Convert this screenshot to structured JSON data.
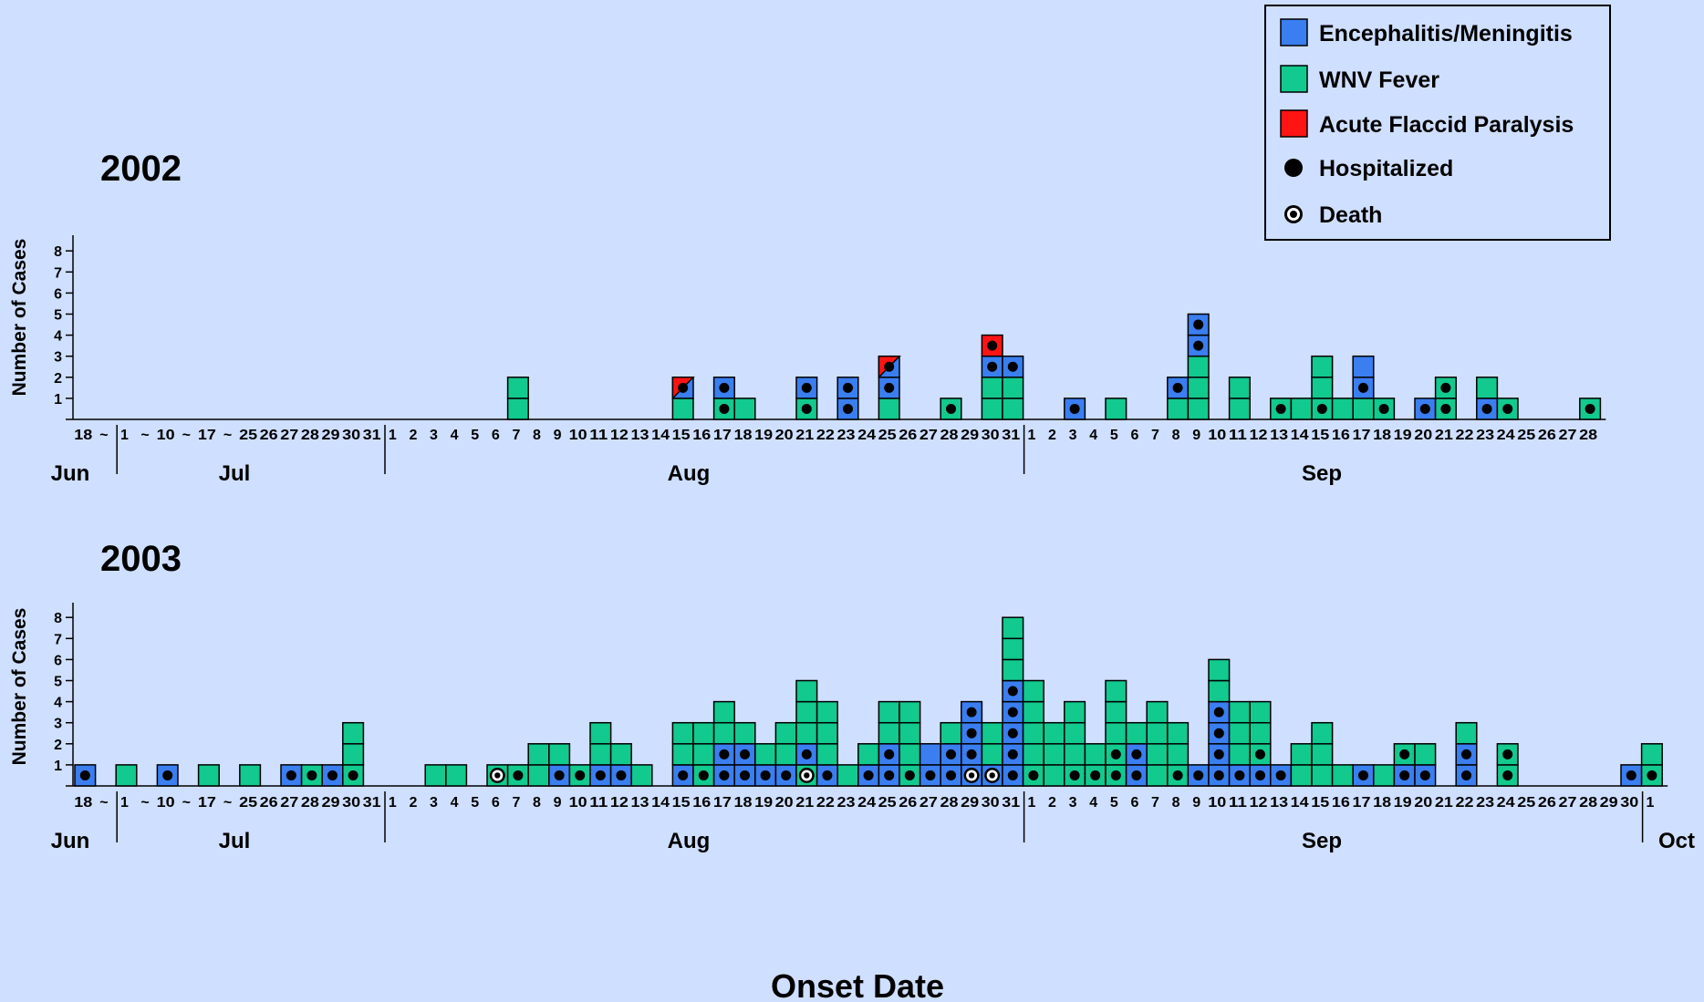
{
  "colors": {
    "background": "#cfdfff",
    "enceph": "#3a7ef0",
    "fever": "#12c98e",
    "afp": "#ff1414",
    "outline": "#000000"
  },
  "legend": {
    "items": [
      {
        "key": "enceph",
        "label": "Encephalitis/Meningitis",
        "symbol": "square"
      },
      {
        "key": "fever",
        "label": "WNV Fever",
        "symbol": "square"
      },
      {
        "key": "afp",
        "label": "Acute Flaccid Paralysis",
        "symbol": "square"
      },
      {
        "key": "hosp",
        "label": "Hospitalized",
        "symbol": "dot"
      },
      {
        "key": "death",
        "label": "Death",
        "symbol": "ring"
      }
    ]
  },
  "chart_data": [
    {
      "type": "bar",
      "title": "2002",
      "xlabel": "Onset Date",
      "ylabel": "Number of Cases",
      "y_ticks": [
        "1",
        "2",
        "3",
        "4",
        "5",
        "6",
        "7",
        "8"
      ],
      "ylim": [
        0,
        8
      ],
      "x_tick_labels": [
        "18",
        "~",
        "1",
        "~",
        "10",
        "~",
        "17",
        "~",
        "25",
        "26",
        "27",
        "28",
        "29",
        "30",
        "31",
        "1",
        "2",
        "3",
        "4",
        "5",
        "6",
        "7",
        "8",
        "9",
        "10",
        "11",
        "12",
        "13",
        "14",
        "15",
        "16",
        "17",
        "18",
        "19",
        "20",
        "21",
        "22",
        "23",
        "24",
        "25",
        "26",
        "27",
        "28",
        "29",
        "30",
        "31",
        "1",
        "2",
        "3",
        "4",
        "5",
        "6",
        "7",
        "8",
        "9",
        "10",
        "11",
        "12",
        "13",
        "14",
        "15",
        "16",
        "17",
        "18",
        "19",
        "20",
        "21",
        "22",
        "23",
        "24",
        "25",
        "26",
        "27",
        "28"
      ],
      "month_labels": [
        {
          "label": "Jun",
          "start_index": 0
        },
        {
          "label": "Jul",
          "start_index": 2
        },
        {
          "label": "Aug",
          "start_index": 15
        },
        {
          "label": "Sep",
          "start_index": 46
        }
      ],
      "bars": [
        {
          "date": "Aug 7",
          "cases": [
            "fever",
            "fever"
          ]
        },
        {
          "date": "Aug 15",
          "cases": [
            "fever",
            "enceph/afp:H"
          ]
        },
        {
          "date": "Aug 17",
          "cases": [
            "fever:H",
            "enceph:H"
          ]
        },
        {
          "date": "Aug 18",
          "cases": [
            "fever"
          ]
        },
        {
          "date": "Aug 21",
          "cases": [
            "fever:H",
            "enceph:H"
          ]
        },
        {
          "date": "Aug 23",
          "cases": [
            "enceph:H",
            "enceph:H"
          ]
        },
        {
          "date": "Aug 25",
          "cases": [
            "fever",
            "enceph:H",
            "enceph/afp:H"
          ]
        },
        {
          "date": "Aug 28",
          "cases": [
            "fever:H"
          ]
        },
        {
          "date": "Aug 30",
          "cases": [
            "fever",
            "fever",
            "enceph:H",
            "afp:H"
          ]
        },
        {
          "date": "Aug 31",
          "cases": [
            "fever",
            "fever",
            "enceph:H"
          ]
        },
        {
          "date": "Sep 3",
          "cases": [
            "enceph:H"
          ]
        },
        {
          "date": "Sep 5",
          "cases": [
            "fever"
          ]
        },
        {
          "date": "Sep 8",
          "cases": [
            "fever",
            "enceph:H"
          ]
        },
        {
          "date": "Sep 9",
          "cases": [
            "fever",
            "fever",
            "fever",
            "enceph:H",
            "enceph:H"
          ]
        },
        {
          "date": "Sep 11",
          "cases": [
            "fever",
            "fever"
          ]
        },
        {
          "date": "Sep 13",
          "cases": [
            "fever:H"
          ]
        },
        {
          "date": "Sep 14",
          "cases": [
            "fever"
          ]
        },
        {
          "date": "Sep 15",
          "cases": [
            "fever:H",
            "fever",
            "fever"
          ]
        },
        {
          "date": "Sep 16",
          "cases": [
            "fever"
          ]
        },
        {
          "date": "Sep 17",
          "cases": [
            "fever",
            "enceph:H",
            "enceph"
          ]
        },
        {
          "date": "Sep 18",
          "cases": [
            "fever:H"
          ]
        },
        {
          "date": "Sep 20",
          "cases": [
            "enceph:H"
          ]
        },
        {
          "date": "Sep 21",
          "cases": [
            "fever:H",
            "fever:H"
          ]
        },
        {
          "date": "Sep 23",
          "cases": [
            "enceph:H",
            "fever"
          ]
        },
        {
          "date": "Sep 24",
          "cases": [
            "fever:H"
          ]
        },
        {
          "date": "Sep 28",
          "cases": [
            "fever:H"
          ]
        }
      ]
    },
    {
      "type": "bar",
      "title": "2003",
      "xlabel": "Onset Date",
      "ylabel": "Number of Cases",
      "y_ticks": [
        "1",
        "2",
        "3",
        "4",
        "5",
        "6",
        "7",
        "8"
      ],
      "ylim": [
        0,
        8
      ],
      "x_tick_labels": [
        "18",
        "~",
        "1",
        "~",
        "10",
        "~",
        "17",
        "~",
        "25",
        "26",
        "27",
        "28",
        "29",
        "30",
        "31",
        "1",
        "2",
        "3",
        "4",
        "5",
        "6",
        "7",
        "8",
        "9",
        "10",
        "11",
        "12",
        "13",
        "14",
        "15",
        "16",
        "17",
        "18",
        "19",
        "20",
        "21",
        "22",
        "23",
        "24",
        "25",
        "26",
        "27",
        "28",
        "29",
        "30",
        "31",
        "1",
        "2",
        "3",
        "4",
        "5",
        "6",
        "7",
        "8",
        "9",
        "10",
        "11",
        "12",
        "13",
        "14",
        "15",
        "16",
        "17",
        "18",
        "19",
        "20",
        "21",
        "22",
        "23",
        "24",
        "25",
        "26",
        "27",
        "28",
        "29",
        "30",
        "1"
      ],
      "month_labels": [
        {
          "label": "Jun",
          "start_index": 0
        },
        {
          "label": "Jul",
          "start_index": 2
        },
        {
          "label": "Aug",
          "start_index": 15
        },
        {
          "label": "Sep",
          "start_index": 46
        },
        {
          "label": "Oct",
          "start_index": 76
        }
      ],
      "bars": [
        {
          "date": "Jun 18",
          "cases": [
            "enceph:H"
          ]
        },
        {
          "date": "Jul 1",
          "cases": [
            "fever"
          ]
        },
        {
          "date": "Jul 10",
          "cases": [
            "enceph:H"
          ]
        },
        {
          "date": "Jul 17",
          "cases": [
            "fever"
          ]
        },
        {
          "date": "Jul 25",
          "cases": [
            "fever"
          ]
        },
        {
          "date": "Jul 27",
          "cases": [
            "enceph:H"
          ]
        },
        {
          "date": "Jul 28",
          "cases": [
            "fever:H"
          ]
        },
        {
          "date": "Jul 29",
          "cases": [
            "enceph:H"
          ]
        },
        {
          "date": "Jul 30",
          "cases": [
            "fever:H",
            "fever",
            "fever"
          ]
        },
        {
          "date": "Aug 3",
          "cases": [
            "fever"
          ]
        },
        {
          "date": "Aug 4",
          "cases": [
            "fever"
          ]
        },
        {
          "date": "Aug 6",
          "cases": [
            "fever:D"
          ]
        },
        {
          "date": "Aug 7",
          "cases": [
            "fever:H"
          ]
        },
        {
          "date": "Aug 8",
          "cases": [
            "fever",
            "fever"
          ]
        },
        {
          "date": "Aug 9",
          "cases": [
            "enceph:H",
            "fever"
          ]
        },
        {
          "date": "Aug 10",
          "cases": [
            "fever:H"
          ]
        },
        {
          "date": "Aug 11",
          "cases": [
            "enceph:H",
            "fever",
            "fever"
          ]
        },
        {
          "date": "Aug 12",
          "cases": [
            "enceph:H",
            "fever"
          ]
        },
        {
          "date": "Aug 13",
          "cases": [
            "fever"
          ]
        },
        {
          "date": "Aug 15",
          "cases": [
            "enceph:H",
            "fever",
            "fever"
          ]
        },
        {
          "date": "Aug 16",
          "cases": [
            "fever:H",
            "fever",
            "fever"
          ]
        },
        {
          "date": "Aug 17",
          "cases": [
            "enceph:H",
            "enceph:H",
            "fever",
            "fever"
          ]
        },
        {
          "date": "Aug 18",
          "cases": [
            "enceph:H",
            "enceph:H",
            "fever"
          ]
        },
        {
          "date": "Aug 19",
          "cases": [
            "enceph:H",
            "fever"
          ]
        },
        {
          "date": "Aug 20",
          "cases": [
            "enceph:H",
            "fever",
            "fever"
          ]
        },
        {
          "date": "Aug 21",
          "cases": [
            "fever:D",
            "enceph:H",
            "fever",
            "fever",
            "fever"
          ]
        },
        {
          "date": "Aug 22",
          "cases": [
            "enceph:H",
            "fever",
            "fever",
            "fever"
          ]
        },
        {
          "date": "Aug 23",
          "cases": [
            "fever"
          ]
        },
        {
          "date": "Aug 24",
          "cases": [
            "enceph:H",
            "fever"
          ]
        },
        {
          "date": "Aug 25",
          "cases": [
            "enceph:H",
            "enceph:H",
            "fever",
            "fever"
          ]
        },
        {
          "date": "Aug 26",
          "cases": [
            "fever:H",
            "fever",
            "fever",
            "fever"
          ]
        },
        {
          "date": "Aug 27",
          "cases": [
            "enceph:H",
            "enceph"
          ]
        },
        {
          "date": "Aug 28",
          "cases": [
            "enceph:H",
            "enceph:H",
            "fever"
          ]
        },
        {
          "date": "Aug 29",
          "cases": [
            "enceph:D",
            "enceph:H",
            "enceph:H",
            "enceph:H"
          ]
        },
        {
          "date": "Aug 30",
          "cases": [
            "enceph:D",
            "fever",
            "fever"
          ]
        },
        {
          "date": "Aug 31",
          "cases": [
            "enceph:H",
            "enceph:H",
            "enceph:H",
            "enceph:H",
            "enceph:H",
            "fever",
            "fever",
            "fever"
          ]
        },
        {
          "date": "Sep 1",
          "cases": [
            "fever:H",
            "fever",
            "fever",
            "fever",
            "fever"
          ]
        },
        {
          "date": "Sep 2",
          "cases": [
            "fever",
            "fever",
            "fever"
          ]
        },
        {
          "date": "Sep 3",
          "cases": [
            "fever:H",
            "fever",
            "fever",
            "fever"
          ]
        },
        {
          "date": "Sep 4",
          "cases": [
            "fever:H",
            "fever"
          ]
        },
        {
          "date": "Sep 5",
          "cases": [
            "fever:H",
            "fever:H",
            "fever",
            "fever",
            "fever"
          ]
        },
        {
          "date": "Sep 6",
          "cases": [
            "enceph:H",
            "enceph:H",
            "fever"
          ]
        },
        {
          "date": "Sep 7",
          "cases": [
            "fever",
            "fever",
            "fever",
            "fever"
          ]
        },
        {
          "date": "Sep 8",
          "cases": [
            "fever:H",
            "fever",
            "fever"
          ]
        },
        {
          "date": "Sep 9",
          "cases": [
            "enceph:H"
          ]
        },
        {
          "date": "Sep 10",
          "cases": [
            "enceph:H",
            "enceph:H",
            "enceph:H",
            "enceph:H",
            "fever",
            "fever"
          ]
        },
        {
          "date": "Sep 11",
          "cases": [
            "enceph:H",
            "fever",
            "fever",
            "fever"
          ]
        },
        {
          "date": "Sep 12",
          "cases": [
            "enceph:H",
            "fever:H",
            "fever",
            "fever"
          ]
        },
        {
          "date": "Sep 13",
          "cases": [
            "enceph:H"
          ]
        },
        {
          "date": "Sep 14",
          "cases": [
            "fever",
            "fever"
          ]
        },
        {
          "date": "Sep 15",
          "cases": [
            "fever",
            "fever",
            "fever"
          ]
        },
        {
          "date": "Sep 16",
          "cases": [
            "fever"
          ]
        },
        {
          "date": "Sep 17",
          "cases": [
            "enceph:H"
          ]
        },
        {
          "date": "Sep 18",
          "cases": [
            "fever"
          ]
        },
        {
          "date": "Sep 19",
          "cases": [
            "enceph:H",
            "fever:H"
          ]
        },
        {
          "date": "Sep 20",
          "cases": [
            "enceph:H",
            "fever"
          ]
        },
        {
          "date": "Sep 22",
          "cases": [
            "enceph:H",
            "enceph:H",
            "fever"
          ]
        },
        {
          "date": "Sep 24",
          "cases": [
            "fever:H",
            "fever:H"
          ]
        },
        {
          "date": "Sep 30",
          "cases": [
            "enceph:H"
          ]
        },
        {
          "date": "Oct 1",
          "cases": [
            "fever:H",
            "fever"
          ]
        }
      ]
    }
  ]
}
